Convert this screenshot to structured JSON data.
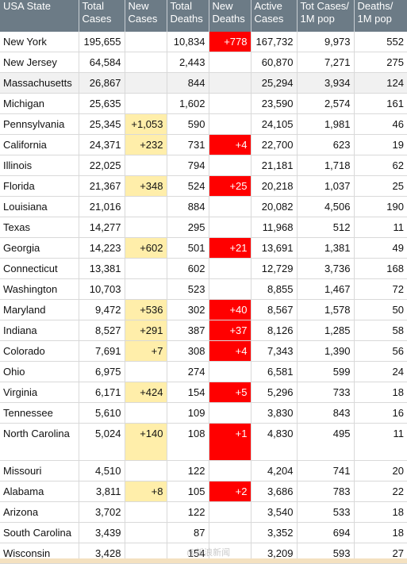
{
  "header": [
    "USA State",
    "Total Cases",
    "New Cases",
    "Total Deaths",
    "New Deaths",
    "Active Cases",
    "Tot Cases/ 1M pop",
    "Deaths/ 1M pop"
  ],
  "rows": [
    {
      "state": "New York",
      "total_cases": "195,655",
      "new_cases": "",
      "total_deaths": "10,834",
      "new_deaths": "+778",
      "active_cases": "167,732",
      "cases_1m": "9,973",
      "deaths_1m": "552"
    },
    {
      "state": "New Jersey",
      "total_cases": "64,584",
      "new_cases": "",
      "total_deaths": "2,443",
      "new_deaths": "",
      "active_cases": "60,870",
      "cases_1m": "7,271",
      "deaths_1m": "275"
    },
    {
      "state": "Massachusetts",
      "total_cases": "26,867",
      "new_cases": "",
      "total_deaths": "844",
      "new_deaths": "",
      "active_cases": "25,294",
      "cases_1m": "3,934",
      "deaths_1m": "124"
    },
    {
      "state": "Michigan",
      "total_cases": "25,635",
      "new_cases": "",
      "total_deaths": "1,602",
      "new_deaths": "",
      "active_cases": "23,590",
      "cases_1m": "2,574",
      "deaths_1m": "161"
    },
    {
      "state": "Pennsylvania",
      "total_cases": "25,345",
      "new_cases": "+1,053",
      "total_deaths": "590",
      "new_deaths": "",
      "active_cases": "24,105",
      "cases_1m": "1,981",
      "deaths_1m": "46"
    },
    {
      "state": "California",
      "total_cases": "24,371",
      "new_cases": "+232",
      "total_deaths": "731",
      "new_deaths": "+4",
      "active_cases": "22,700",
      "cases_1m": "623",
      "deaths_1m": "19"
    },
    {
      "state": "Illinois",
      "total_cases": "22,025",
      "new_cases": "",
      "total_deaths": "794",
      "new_deaths": "",
      "active_cases": "21,181",
      "cases_1m": "1,718",
      "deaths_1m": "62"
    },
    {
      "state": "Florida",
      "total_cases": "21,367",
      "new_cases": "+348",
      "total_deaths": "524",
      "new_deaths": "+25",
      "active_cases": "20,218",
      "cases_1m": "1,037",
      "deaths_1m": "25"
    },
    {
      "state": "Louisiana",
      "total_cases": "21,016",
      "new_cases": "",
      "total_deaths": "884",
      "new_deaths": "",
      "active_cases": "20,082",
      "cases_1m": "4,506",
      "deaths_1m": "190"
    },
    {
      "state": "Texas",
      "total_cases": "14,277",
      "new_cases": "",
      "total_deaths": "295",
      "new_deaths": "",
      "active_cases": "11,968",
      "cases_1m": "512",
      "deaths_1m": "11"
    },
    {
      "state": "Georgia",
      "total_cases": "14,223",
      "new_cases": "+602",
      "total_deaths": "501",
      "new_deaths": "+21",
      "active_cases": "13,691",
      "cases_1m": "1,381",
      "deaths_1m": "49"
    },
    {
      "state": "Connecticut",
      "total_cases": "13,381",
      "new_cases": "",
      "total_deaths": "602",
      "new_deaths": "",
      "active_cases": "12,729",
      "cases_1m": "3,736",
      "deaths_1m": "168"
    },
    {
      "state": "Washington",
      "total_cases": "10,703",
      "new_cases": "",
      "total_deaths": "523",
      "new_deaths": "",
      "active_cases": "8,855",
      "cases_1m": "1,467",
      "deaths_1m": "72"
    },
    {
      "state": "Maryland",
      "total_cases": "9,472",
      "new_cases": "+536",
      "total_deaths": "302",
      "new_deaths": "+40",
      "active_cases": "8,567",
      "cases_1m": "1,578",
      "deaths_1m": "50"
    },
    {
      "state": "Indiana",
      "total_cases": "8,527",
      "new_cases": "+291",
      "total_deaths": "387",
      "new_deaths": "+37",
      "active_cases": "8,126",
      "cases_1m": "1,285",
      "deaths_1m": "58"
    },
    {
      "state": "Colorado",
      "total_cases": "7,691",
      "new_cases": "+7",
      "total_deaths": "308",
      "new_deaths": "+4",
      "active_cases": "7,343",
      "cases_1m": "1,390",
      "deaths_1m": "56"
    },
    {
      "state": "Ohio",
      "total_cases": "6,975",
      "new_cases": "",
      "total_deaths": "274",
      "new_deaths": "",
      "active_cases": "6,581",
      "cases_1m": "599",
      "deaths_1m": "24"
    },
    {
      "state": "Virginia",
      "total_cases": "6,171",
      "new_cases": "+424",
      "total_deaths": "154",
      "new_deaths": "+5",
      "active_cases": "5,296",
      "cases_1m": "733",
      "deaths_1m": "18"
    },
    {
      "state": "Tennessee",
      "total_cases": "5,610",
      "new_cases": "",
      "total_deaths": "109",
      "new_deaths": "",
      "active_cases": "3,830",
      "cases_1m": "843",
      "deaths_1m": "16"
    },
    {
      "state": "North Carolina",
      "total_cases": "5,024",
      "new_cases": "+140",
      "total_deaths": "108",
      "new_deaths": "+1",
      "active_cases": "4,830",
      "cases_1m": "495",
      "deaths_1m": "11"
    },
    {
      "state": "Missouri",
      "total_cases": "4,510",
      "new_cases": "",
      "total_deaths": "122",
      "new_deaths": "",
      "active_cases": "4,204",
      "cases_1m": "741",
      "deaths_1m": "20"
    },
    {
      "state": "Alabama",
      "total_cases": "3,811",
      "new_cases": "+8",
      "total_deaths": "105",
      "new_deaths": "+2",
      "active_cases": "3,686",
      "cases_1m": "783",
      "deaths_1m": "22"
    },
    {
      "state": "Arizona",
      "total_cases": "3,702",
      "new_cases": "",
      "total_deaths": "122",
      "new_deaths": "",
      "active_cases": "3,540",
      "cases_1m": "533",
      "deaths_1m": "18"
    },
    {
      "state": "South Carolina",
      "total_cases": "3,439",
      "new_cases": "",
      "total_deaths": "87",
      "new_deaths": "",
      "active_cases": "3,352",
      "cases_1m": "694",
      "deaths_1m": "18"
    },
    {
      "state": "Wisconsin",
      "total_cases": "3,428",
      "new_cases": "",
      "total_deaths": "154",
      "new_deaths": "",
      "active_cases": "3,209",
      "cases_1m": "593",
      "deaths_1m": "27"
    }
  ],
  "highlighted_row": "Massachusetts",
  "watermark": "@新浪新闻",
  "colors": {
    "header_bg": "#6c7b86",
    "new_cases_bg": "#ffeeaa",
    "new_deaths_bg": "#ff0000",
    "row_highlight": "#f1f1f1"
  }
}
